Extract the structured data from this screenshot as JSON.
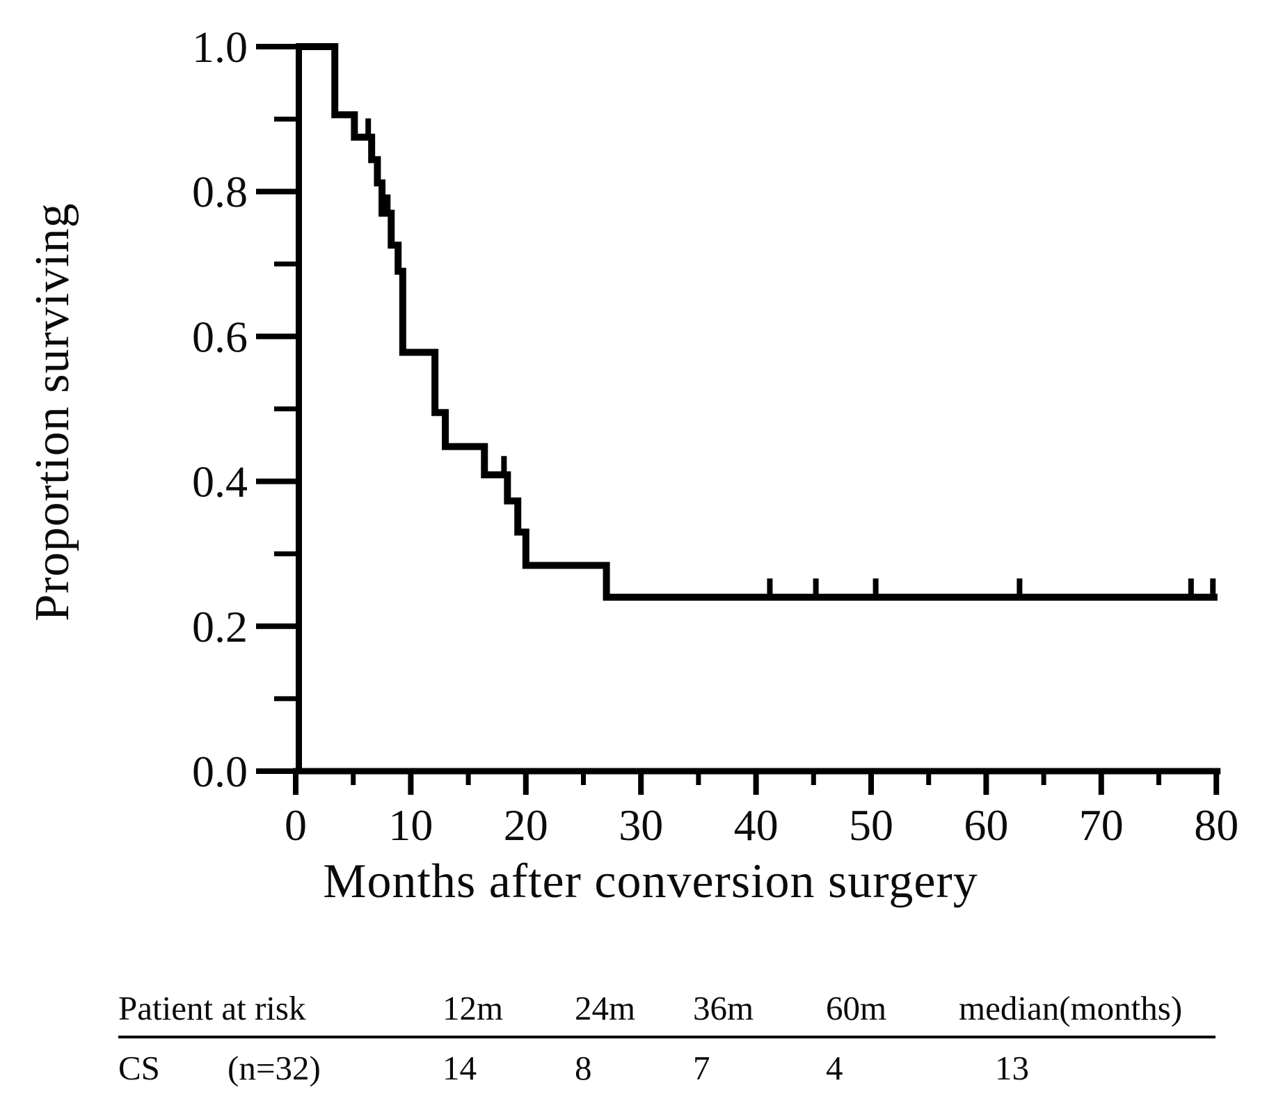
{
  "figure": {
    "background": "#ffffff",
    "ink": "#000000"
  },
  "chart_data": {
    "type": "line",
    "subtype": "kaplan-meier-step",
    "title": "",
    "xlabel": "Months after conversion surgery",
    "ylabel": "Proportion surviving",
    "xlim": [
      0,
      80
    ],
    "ylim": [
      0.0,
      1.0
    ],
    "grid": false,
    "legend": false,
    "x_major_ticks": [
      0,
      10,
      20,
      30,
      40,
      50,
      60,
      70,
      80
    ],
    "x_tick_labels": [
      "0",
      "10",
      "20",
      "30",
      "40",
      "50",
      "60",
      "70",
      "80"
    ],
    "x_minor_ticks": [
      5,
      15,
      25,
      35,
      45,
      55,
      65,
      75
    ],
    "y_major_ticks": [
      0.0,
      0.2,
      0.4,
      0.6,
      0.8,
      1.0
    ],
    "y_tick_labels": [
      "0.0",
      "0.2",
      "0.4",
      "0.6",
      "0.8",
      "1.0"
    ],
    "y_minor_ticks": [
      0.1,
      0.3,
      0.5,
      0.7,
      0.9
    ],
    "series": [
      {
        "name": "CS",
        "color": "#000000",
        "steps": [
          [
            0,
            1.0
          ],
          [
            3.4,
            0.906
          ],
          [
            5.1,
            0.875
          ],
          [
            6.6,
            0.844
          ],
          [
            7.1,
            0.812
          ],
          [
            7.5,
            0.77
          ],
          [
            8.3,
            0.726
          ],
          [
            8.9,
            0.69
          ],
          [
            9.3,
            0.578
          ],
          [
            12.1,
            0.495
          ],
          [
            13.0,
            0.448
          ],
          [
            16.4,
            0.409
          ],
          [
            18.4,
            0.373
          ],
          [
            19.3,
            0.33
          ],
          [
            20.0,
            0.284
          ],
          [
            27.0,
            0.24
          ]
        ],
        "end_time": 80.1,
        "censor_marks": [
          [
            6.3,
            0.875
          ],
          [
            8.0,
            0.77
          ],
          [
            18.1,
            0.409
          ],
          [
            41.2,
            0.24
          ],
          [
            45.2,
            0.24
          ],
          [
            50.4,
            0.24
          ],
          [
            62.9,
            0.24
          ],
          [
            77.8,
            0.24
          ],
          [
            79.7,
            0.24
          ]
        ]
      }
    ]
  },
  "risk_table": {
    "header": [
      "Patient at risk",
      "12m",
      "24m",
      "36m",
      "60m",
      "median(months)"
    ],
    "rows": [
      {
        "label": "CS",
        "n_label": "(n=32)",
        "values": [
          "14",
          "8",
          "7",
          "4",
          "13"
        ]
      }
    ]
  }
}
